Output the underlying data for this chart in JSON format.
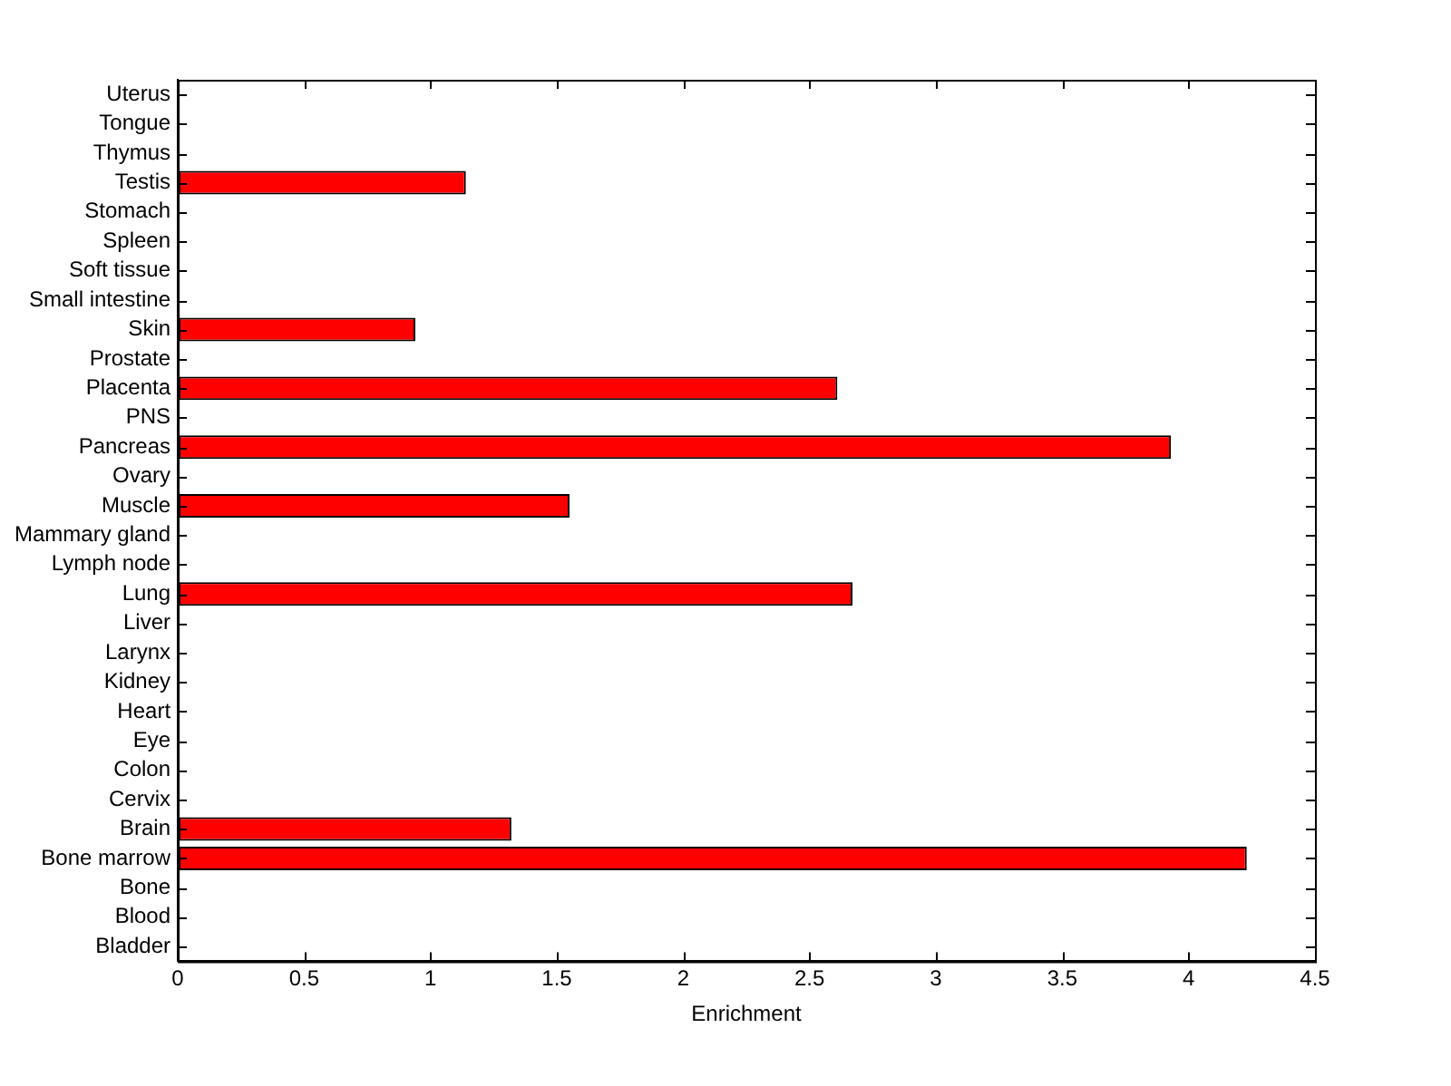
{
  "chart_data": {
    "type": "bar",
    "orientation": "horizontal",
    "xlabel": "Enrichment",
    "categories": [
      "Uterus",
      "Tongue",
      "Thymus",
      "Testis",
      "Stomach",
      "Spleen",
      "Soft tissue",
      "Small intestine",
      "Skin",
      "Prostate",
      "Placenta",
      "PNS",
      "Pancreas",
      "Ovary",
      "Muscle",
      "Mammary gland",
      "Lymph node",
      "Lung",
      "Liver",
      "Larynx",
      "Kidney",
      "Heart",
      "Eye",
      "Colon",
      "Cervix",
      "Brain",
      "Bone marrow",
      "Bone",
      "Blood",
      "Bladder"
    ],
    "values": [
      0,
      0,
      0,
      1.14,
      0,
      0,
      0,
      0,
      0.94,
      0,
      2.61,
      0,
      3.93,
      0,
      1.55,
      0,
      0,
      2.67,
      0,
      0,
      0,
      0,
      0,
      0,
      0,
      1.32,
      4.23,
      0,
      0,
      0
    ],
    "color": "#ff0000",
    "xlim": [
      0,
      4.5
    ],
    "xticks": [
      0,
      0.5,
      1,
      1.5,
      2,
      2.5,
      3,
      3.5,
      4,
      4.5
    ],
    "grid": false,
    "legend": false
  }
}
